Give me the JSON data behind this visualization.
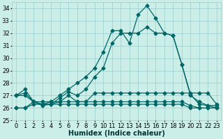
{
  "xlabel": "Humidex (Indice chaleur)",
  "background_color": "#cceee8",
  "grid_color": "#99cccc",
  "line_color": "#006666",
  "ylim": [
    25,
    34.5
  ],
  "xlim": [
    -0.5,
    23.5
  ],
  "yticks": [
    25,
    26,
    27,
    28,
    29,
    30,
    31,
    32,
    33,
    34
  ],
  "xticks": [
    0,
    1,
    2,
    3,
    4,
    5,
    6,
    7,
    8,
    9,
    10,
    11,
    12,
    13,
    14,
    15,
    16,
    17,
    18,
    19,
    20,
    21,
    22,
    23
  ],
  "series": [
    [
      26.0,
      26.0,
      26.3,
      26.3,
      26.3,
      26.3,
      26.3,
      26.3,
      26.3,
      26.3,
      26.3,
      26.3,
      26.3,
      26.3,
      26.3,
      26.3,
      26.3,
      26.3,
      26.3,
      26.3,
      26.0,
      26.0,
      26.0,
      26.0
    ],
    [
      26.0,
      26.0,
      26.5,
      26.5,
      26.5,
      26.5,
      26.5,
      26.5,
      26.5,
      26.5,
      26.5,
      26.5,
      26.5,
      26.5,
      26.5,
      26.5,
      26.5,
      26.5,
      26.5,
      26.5,
      26.2,
      26.0,
      26.0,
      26.0
    ],
    [
      27.0,
      27.0,
      26.5,
      26.3,
      26.3,
      26.5,
      27.0,
      26.5,
      26.5,
      27.2,
      27.2,
      27.2,
      27.2,
      27.2,
      27.2,
      27.2,
      27.2,
      27.2,
      27.2,
      27.2,
      27.2,
      27.2,
      27.2,
      26.3
    ],
    [
      27.0,
      27.2,
      26.5,
      26.2,
      26.3,
      26.8,
      27.3,
      27.0,
      27.5,
      28.5,
      29.2,
      31.2,
      32.0,
      32.0,
      32.0,
      32.5,
      32.0,
      32.0,
      31.8,
      29.5,
      27.1,
      26.3,
      26.2,
      26.2
    ],
    [
      27.0,
      27.5,
      26.5,
      26.3,
      26.5,
      27.0,
      27.5,
      28.0,
      28.5,
      29.2,
      30.5,
      32.2,
      32.2,
      31.2,
      33.5,
      34.2,
      33.2,
      32.0,
      31.8,
      29.5,
      27.0,
      26.5,
      26.2,
      26.0
    ]
  ],
  "marker": "D",
  "markersize": 2.5,
  "linewidth": 0.9,
  "xlabel_fontsize": 7,
  "tick_fontsize": 6
}
